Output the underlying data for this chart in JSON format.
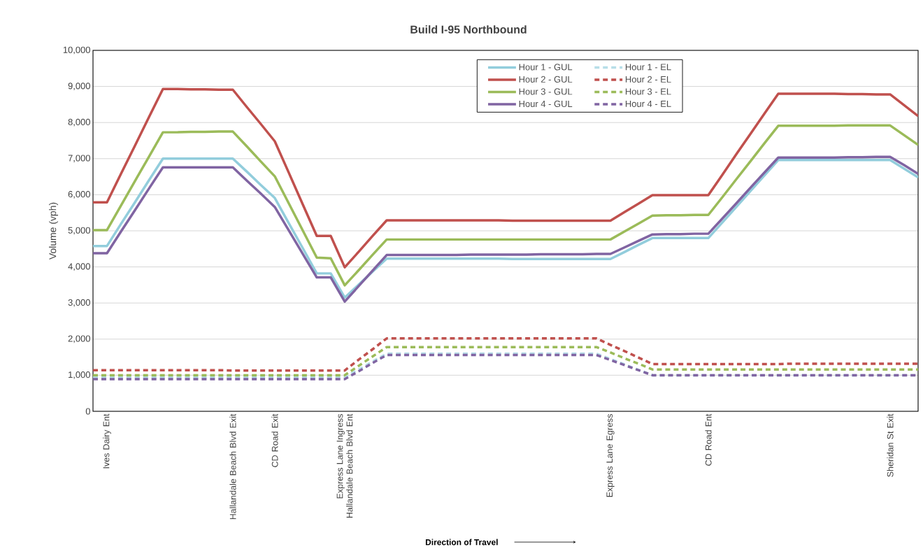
{
  "chart_data": {
    "type": "line",
    "title": "Build I-95 Northbound",
    "ylabel": "Volume (vph)",
    "annotations": [
      "Direction of Travel"
    ],
    "categories": [
      null,
      "Ives Dairy Ent",
      null,
      null,
      null,
      null,
      null,
      null,
      null,
      null,
      "Hallandale Beach Blvd Exit",
      null,
      null,
      "CD Road Exit",
      null,
      null,
      null,
      null,
      "Express Lane Ingress Hallandale Beach Blvd Ent",
      null,
      null,
      null,
      null,
      null,
      null,
      null,
      null,
      null,
      null,
      null,
      null,
      null,
      null,
      null,
      null,
      null,
      null,
      "Express Lane Egress",
      null,
      null,
      null,
      null,
      null,
      null,
      "CD Road Ent",
      null,
      null,
      null,
      null,
      null,
      null,
      null,
      null,
      null,
      null,
      null,
      null,
      "Sheridan St Exit",
      null,
      null
    ],
    "ylim": [
      0,
      10000
    ],
    "yticks": [
      0,
      {
        "value": 1000,
        "label": "1,000"
      },
      {
        "value": 2000,
        "label": "2,000"
      },
      {
        "value": 3000,
        "label": "3,000"
      },
      {
        "value": 4000,
        "label": "4,000"
      },
      {
        "value": 5000,
        "label": "5,000"
      },
      {
        "value": 6000,
        "label": "6,000"
      },
      {
        "value": 7000,
        "label": "7,000"
      },
      {
        "value": 8000,
        "label": "8,000"
      },
      {
        "value": 9000,
        "label": "9,000"
      },
      {
        "value": 10000,
        "label": "10,000"
      }
    ],
    "grid": "y",
    "legend": "top",
    "marker": "none",
    "series": [
      {
        "name": "Hour 1 - GUL",
        "color": "#92cddc",
        "line_style": "solid",
        "values": [
          4580,
          4580,
          5190,
          5790,
          6400,
          7000,
          7000,
          7000,
          7000,
          7000,
          7000,
          6640,
          6270,
          5910,
          5210,
          4520,
          3820,
          3820,
          3150,
          3510,
          3870,
          4230,
          4230,
          4230,
          4230,
          4230,
          4230,
          4230,
          4230,
          4230,
          4220,
          4220,
          4220,
          4220,
          4220,
          4220,
          4220,
          4220,
          4410,
          4610,
          4800,
          4800,
          4800,
          4800,
          4800,
          5230,
          5660,
          6100,
          6530,
          6960,
          6960,
          6960,
          6960,
          6960,
          6960,
          6960,
          6960,
          6960,
          6720,
          6480
        ]
      },
      {
        "name": "Hour 1 - EL",
        "color": "#b7dee8",
        "line_style": "dashed",
        "values": [
          940,
          940,
          940,
          940,
          940,
          940,
          940,
          940,
          940,
          940,
          940,
          940,
          940,
          940,
          940,
          940,
          940,
          940,
          940,
          1160,
          1380,
          1600,
          1600,
          1600,
          1600,
          1600,
          1600,
          1600,
          1600,
          1600,
          1600,
          1600,
          1600,
          1600,
          1600,
          1600,
          1600,
          1450,
          1300,
          1150,
          1000,
          1000,
          1000,
          1000,
          1000,
          1000,
          1000,
          1000,
          1000,
          1000,
          1000,
          1000,
          1000,
          1000,
          1000,
          1000,
          1000,
          1000,
          1000,
          1000
        ]
      },
      {
        "name": "Hour 2 - GUL",
        "color": "#c0504d",
        "line_style": "solid",
        "values": [
          5790,
          5790,
          6580,
          7360,
          8150,
          8930,
          8930,
          8920,
          8920,
          8910,
          8910,
          8430,
          7960,
          7480,
          6610,
          5730,
          4860,
          4860,
          3990,
          4420,
          4860,
          5290,
          5290,
          5290,
          5290,
          5290,
          5290,
          5290,
          5290,
          5290,
          5280,
          5280,
          5280,
          5280,
          5280,
          5280,
          5280,
          5280,
          5520,
          5750,
          5990,
          5990,
          5990,
          5990,
          5990,
          6550,
          7120,
          7680,
          8240,
          8800,
          8800,
          8800,
          8800,
          8800,
          8790,
          8790,
          8780,
          8780,
          8480,
          8180
        ]
      },
      {
        "name": "Hour 2 - EL",
        "color": "#c0504d",
        "line_style": "dashed",
        "values": [
          1140,
          1140,
          1140,
          1140,
          1140,
          1140,
          1140,
          1140,
          1140,
          1140,
          1130,
          1130,
          1130,
          1130,
          1130,
          1130,
          1130,
          1130,
          1130,
          1430,
          1720,
          2020,
          2020,
          2020,
          2020,
          2020,
          2020,
          2020,
          2020,
          2020,
          2020,
          2020,
          2020,
          2020,
          2020,
          2020,
          2020,
          1840,
          1670,
          1490,
          1310,
          1310,
          1310,
          1310,
          1310,
          1310,
          1310,
          1310,
          1310,
          1310,
          1320,
          1320,
          1320,
          1320,
          1320,
          1320,
          1320,
          1320,
          1320,
          1320
        ]
      },
      {
        "name": "Hour 3 - GUL",
        "color": "#9bbb59",
        "line_style": "solid",
        "values": [
          5020,
          5020,
          5700,
          6380,
          7050,
          7730,
          7730,
          7740,
          7740,
          7750,
          7750,
          7340,
          6920,
          6510,
          5760,
          5010,
          4260,
          4240,
          3490,
          3910,
          4340,
          4760,
          4760,
          4760,
          4760,
          4760,
          4760,
          4760,
          4760,
          4760,
          4760,
          4760,
          4760,
          4760,
          4760,
          4760,
          4760,
          4760,
          4980,
          5200,
          5420,
          5430,
          5430,
          5440,
          5440,
          5930,
          6430,
          6920,
          7420,
          7910,
          7910,
          7910,
          7910,
          7910,
          7920,
          7920,
          7920,
          7920,
          7650,
          7380
        ]
      },
      {
        "name": "Hour 3 - EL",
        "color": "#9bbb59",
        "line_style": "dashed",
        "values": [
          1000,
          1000,
          1000,
          1000,
          1000,
          1000,
          1000,
          1000,
          1000,
          1000,
          1000,
          1000,
          1000,
          1000,
          1000,
          1000,
          1000,
          1000,
          1000,
          1260,
          1520,
          1780,
          1780,
          1780,
          1780,
          1780,
          1780,
          1780,
          1780,
          1780,
          1780,
          1780,
          1780,
          1780,
          1780,
          1780,
          1780,
          1630,
          1470,
          1320,
          1160,
          1160,
          1160,
          1160,
          1160,
          1160,
          1160,
          1160,
          1160,
          1160,
          1160,
          1160,
          1160,
          1160,
          1160,
          1160,
          1160,
          1160,
          1160,
          1160
        ]
      },
      {
        "name": "Hour 4 - GUL",
        "color": "#8064a2",
        "line_style": "solid",
        "values": [
          4380,
          4380,
          4980,
          5570,
          6170,
          6760,
          6760,
          6760,
          6760,
          6760,
          6760,
          6390,
          6030,
          5660,
          5010,
          4360,
          3710,
          3710,
          3040,
          3470,
          3900,
          4330,
          4330,
          4330,
          4330,
          4330,
          4330,
          4340,
          4340,
          4340,
          4340,
          4340,
          4350,
          4350,
          4350,
          4350,
          4360,
          4360,
          4540,
          4720,
          4900,
          4910,
          4910,
          4920,
          4920,
          5340,
          5760,
          6190,
          6610,
          7030,
          7030,
          7030,
          7030,
          7030,
          7040,
          7040,
          7050,
          7050,
          6820,
          6580
        ]
      },
      {
        "name": "Hour 4 - EL",
        "color": "#8064a2",
        "line_style": "dashed",
        "values": [
          890,
          890,
          890,
          890,
          890,
          890,
          890,
          890,
          890,
          890,
          890,
          890,
          890,
          890,
          890,
          890,
          890,
          890,
          890,
          1110,
          1340,
          1560,
          1560,
          1560,
          1560,
          1560,
          1560,
          1560,
          1560,
          1560,
          1560,
          1560,
          1560,
          1560,
          1560,
          1560,
          1560,
          1420,
          1280,
          1140,
          1000,
          1000,
          1000,
          1000,
          1000,
          1000,
          1000,
          1000,
          1000,
          1000,
          1000,
          1000,
          1000,
          1000,
          1000,
          1000,
          1000,
          1000,
          1000,
          1000
        ]
      }
    ]
  }
}
